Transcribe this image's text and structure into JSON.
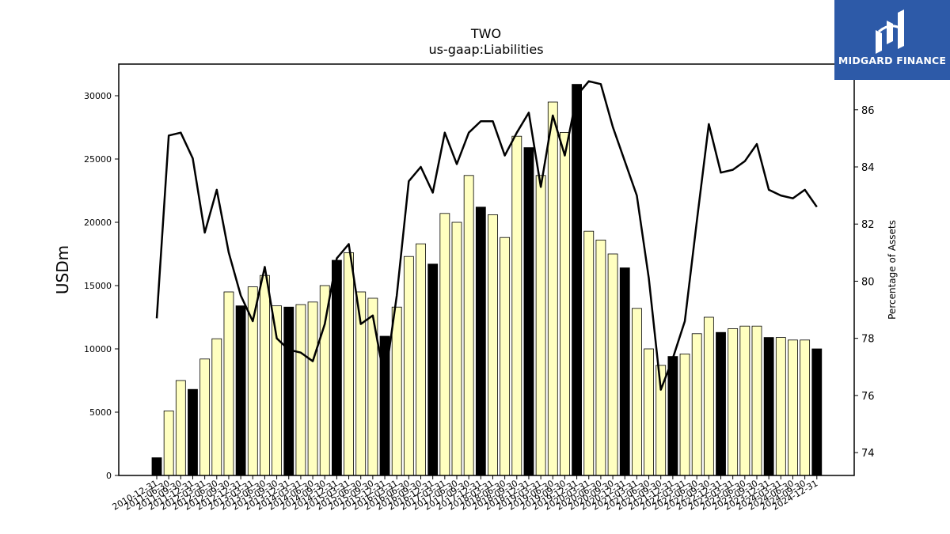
{
  "chart_data": {
    "type": "bar",
    "title": "TWO",
    "subtitle": "us-gaap:Liabilities",
    "ylabel": "USDm",
    "y2label": "Percentage of Assets",
    "ylim": [
      0,
      32500
    ],
    "y2lim": [
      73.2,
      87.6
    ],
    "yticks": [
      0,
      5000,
      10000,
      15000,
      20000,
      25000,
      30000
    ],
    "y2ticks": [
      74,
      76,
      78,
      80,
      82,
      84,
      86
    ],
    "categories": [
      "2010-12-31",
      "2011-06-30",
      "2011-09-30",
      "2011-12-31",
      "2012-03-31",
      "2012-06-30",
      "2012-09-30",
      "2012-12-31",
      "2013-03-31",
      "2013-06-30",
      "2013-09-30",
      "2013-12-31",
      "2014-03-31",
      "2014-06-30",
      "2014-09-30",
      "2014-12-31",
      "2015-03-31",
      "2015-06-30",
      "2015-09-30",
      "2015-12-31",
      "2016-03-31",
      "2016-06-30",
      "2016-09-30",
      "2016-12-31",
      "2017-03-31",
      "2017-06-30",
      "2017-09-30",
      "2017-12-31",
      "2018-03-31",
      "2018-06-30",
      "2018-09-30",
      "2018-12-31",
      "2019-03-31",
      "2019-06-30",
      "2019-09-30",
      "2019-12-31",
      "2020-03-31",
      "2020-06-30",
      "2020-09-30",
      "2020-12-31",
      "2021-03-31",
      "2021-06-30",
      "2021-09-30",
      "2021-12-31",
      "2022-03-31",
      "2022-06-30",
      "2022-09-30",
      "2022-12-31",
      "2023-03-31",
      "2023-06-30",
      "2023-09-30",
      "2023-12-31",
      "2024-03-31",
      "2024-06-30",
      "2024-09-30",
      "2024-12-31"
    ],
    "series": [
      {
        "type": "bar",
        "values": [
          1400,
          5100,
          7500,
          6800,
          9200,
          10800,
          14500,
          13400,
          14900,
          15800,
          13400,
          13300,
          13500,
          13700,
          15000,
          17000,
          17600,
          14500,
          14000,
          11000,
          13300,
          17300,
          18300,
          16700,
          20700,
          20000,
          23700,
          21200,
          20600,
          18800,
          26800,
          25900,
          23700,
          29500,
          27100,
          30900,
          19300,
          18600,
          17500,
          16400,
          13200,
          10000,
          8700,
          9400,
          9600,
          11200,
          12500,
          11300,
          11600,
          11800,
          11800,
          10900,
          10900,
          10700,
          10700,
          10000
        ],
        "highlight": [
          true,
          false,
          false,
          true,
          false,
          false,
          false,
          true,
          false,
          false,
          false,
          true,
          false,
          false,
          false,
          true,
          false,
          false,
          false,
          true,
          false,
          false,
          false,
          true,
          false,
          false,
          false,
          true,
          false,
          false,
          false,
          true,
          false,
          false,
          false,
          true,
          false,
          false,
          false,
          true,
          false,
          false,
          false,
          true,
          false,
          false,
          false,
          true,
          false,
          false,
          false,
          true,
          false,
          false,
          false,
          true
        ]
      },
      {
        "type": "line",
        "axis": "right",
        "values": [
          78.7,
          85.1,
          85.2,
          84.3,
          81.7,
          83.2,
          81.0,
          79.5,
          78.6,
          80.5,
          78.0,
          77.6,
          77.5,
          77.2,
          78.5,
          80.8,
          81.3,
          78.5,
          78.8,
          76.5,
          79.5,
          83.5,
          84.0,
          83.1,
          85.2,
          84.1,
          85.2,
          85.6,
          85.6,
          84.4,
          85.2,
          85.9,
          83.3,
          85.8,
          84.4,
          86.5,
          87.0,
          86.9,
          85.4,
          84.2,
          83.0,
          80.1,
          76.2,
          77.3,
          78.6,
          82.1,
          85.5,
          83.8,
          83.9,
          84.2,
          84.8,
          83.2,
          83.0,
          82.9,
          83.2,
          82.6
        ]
      }
    ],
    "colors": {
      "bar_light": "#ffffc0",
      "bar_dark": "#000000",
      "line": "#000000"
    }
  },
  "logo": {
    "text": "MIDGARD FINANCE",
    "bg": "#2d5aa8"
  }
}
